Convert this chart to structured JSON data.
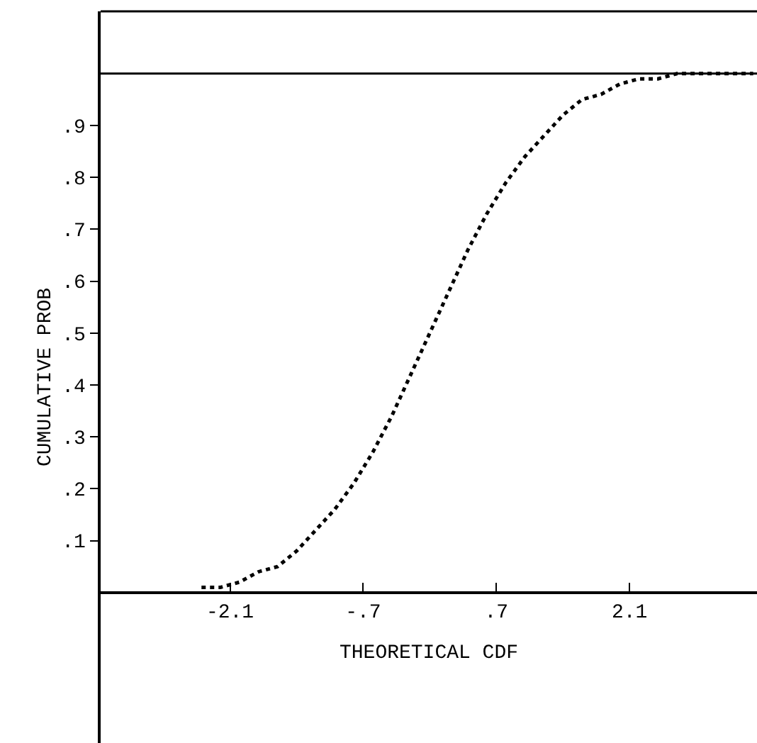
{
  "chart_data": {
    "type": "line",
    "xlabel": "THEORETICAL CDF",
    "ylabel": "CUMULATIVE PROB",
    "x": [
      -2.4,
      -2.2,
      -2.0,
      -1.8,
      -1.6,
      -1.4,
      -1.2,
      -1.0,
      -0.8,
      -0.6,
      -0.4,
      -0.2,
      0.0,
      0.2,
      0.4,
      0.6,
      0.8,
      1.0,
      1.2,
      1.4,
      1.6,
      1.8,
      2.0,
      2.2,
      2.4,
      2.6,
      2.8,
      3.0,
      3.2,
      3.4
    ],
    "series": [
      {
        "color": "#000000",
        "values": [
          0.01,
          0.01,
          0.02,
          0.04,
          0.05,
          0.08,
          0.12,
          0.16,
          0.21,
          0.27,
          0.34,
          0.42,
          0.5,
          0.58,
          0.66,
          0.73,
          0.79,
          0.84,
          0.88,
          0.92,
          0.95,
          0.96,
          0.98,
          0.99,
          0.99,
          1.0,
          1.0,
          1.0,
          1.0,
          1.0
        ]
      }
    ],
    "line_style": "dotted",
    "marker": "none",
    "xlim": [
      -3.46,
      3.44
    ],
    "xticks": [
      -2.1,
      {
        "value": -0.7,
        "label": "-.7"
      },
      {
        "value": 0.7,
        "label": ".7"
      },
      2.1
    ],
    "ylim": [
      -0.29,
      1.12
    ],
    "yticks": [
      {
        "value": 0.1,
        "label": ".1"
      },
      {
        "value": 0.2,
        "label": ".2"
      },
      {
        "value": 0.3,
        "label": ".3"
      },
      {
        "value": 0.4,
        "label": ".4"
      },
      {
        "value": 0.5,
        "label": ".5"
      },
      {
        "value": 0.6,
        "label": ".6"
      },
      {
        "value": 0.7,
        "label": ".7"
      },
      {
        "value": 0.8,
        "label": ".8"
      },
      {
        "value": 0.9,
        "label": ".9"
      }
    ],
    "ref_lines": [
      {
        "axis": "y",
        "value": 1,
        "color": "#000000"
      }
    ]
  }
}
